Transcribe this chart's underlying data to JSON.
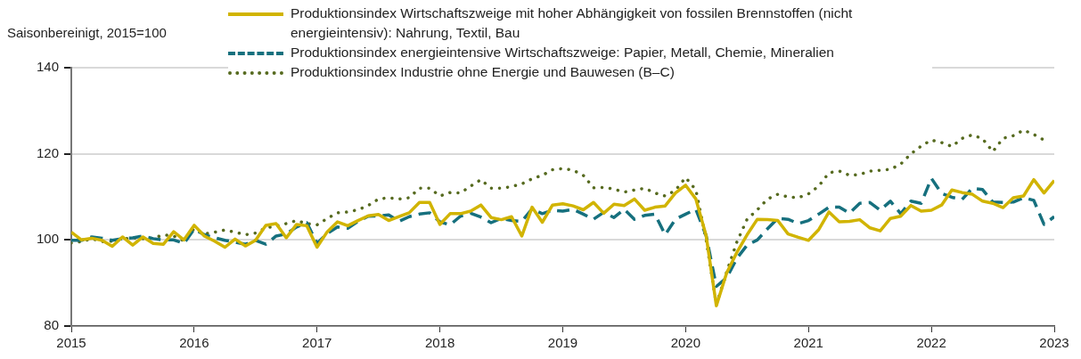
{
  "chart_data": {
    "type": "line",
    "ylabel": "Saisonbereinigt, 2015=100",
    "legend": "top",
    "grid": "y",
    "marker": "none",
    "xlim": [
      "2015-01",
      "2023-01"
    ],
    "xticks": [
      "2015",
      "2016",
      "2017",
      "2018",
      "2019",
      "2020",
      "2021",
      "2022",
      "2023"
    ],
    "ylim": [
      80,
      140
    ],
    "yticks": [
      80,
      100,
      120,
      140
    ],
    "x": [
      "2015-01",
      "2015-02",
      "2015-03",
      "2015-04",
      "2015-05",
      "2015-06",
      "2015-07",
      "2015-08",
      "2015-09",
      "2015-10",
      "2015-11",
      "2015-12",
      "2016-01",
      "2016-02",
      "2016-03",
      "2016-04",
      "2016-05",
      "2016-06",
      "2016-07",
      "2016-08",
      "2016-09",
      "2016-10",
      "2016-11",
      "2016-12",
      "2017-01",
      "2017-02",
      "2017-03",
      "2017-04",
      "2017-05",
      "2017-06",
      "2017-07",
      "2017-08",
      "2017-09",
      "2017-10",
      "2017-11",
      "2017-12",
      "2018-01",
      "2018-02",
      "2018-03",
      "2018-04",
      "2018-05",
      "2018-06",
      "2018-07",
      "2018-08",
      "2018-09",
      "2018-10",
      "2018-11",
      "2018-12",
      "2019-01",
      "2019-02",
      "2019-03",
      "2019-04",
      "2019-05",
      "2019-06",
      "2019-07",
      "2019-08",
      "2019-09",
      "2019-10",
      "2019-11",
      "2019-12",
      "2020-01",
      "2020-02",
      "2020-03",
      "2020-04",
      "2020-05",
      "2020-06",
      "2020-07",
      "2020-08",
      "2020-09",
      "2020-10",
      "2020-11",
      "2020-12",
      "2021-01",
      "2021-02",
      "2021-03",
      "2021-04",
      "2021-05",
      "2021-06",
      "2021-07",
      "2021-08",
      "2021-09",
      "2021-10",
      "2021-11",
      "2021-12",
      "2022-01",
      "2022-02",
      "2022-03",
      "2022-04",
      "2022-05",
      "2022-06",
      "2022-07",
      "2022-08",
      "2022-09",
      "2022-10",
      "2022-11",
      "2022-12",
      "2023-01"
    ],
    "series": [
      {
        "name": "Produktionsindex Wirtschaftszweige mit hoher Abhängigkeit von fossilen Brennstoffen (nicht energieintensiv): Nahrung, Textil, Bau",
        "color": "#d1b400",
        "line_style": "solid",
        "values": [
          101.8,
          100,
          100.4,
          99.9,
          98.5,
          100.7,
          98.8,
          100.7,
          99.2,
          99,
          101.9,
          100,
          103.4,
          100.9,
          99.7,
          98.3,
          100.2,
          98.6,
          99.9,
          103.4,
          103.8,
          100.5,
          103.6,
          103.3,
          98.3,
          101.9,
          104.2,
          103.3,
          104.5,
          105.6,
          105.9,
          104.5,
          105.4,
          106.3,
          108.7,
          108.7,
          103.6,
          106.1,
          106.1,
          106.7,
          108.1,
          105.2,
          104.7,
          105.4,
          100.9,
          107.6,
          104.1,
          108.1,
          108.4,
          107.9,
          107,
          108.7,
          106.2,
          108.3,
          108,
          109.5,
          106.9,
          107.6,
          107.9,
          110.9,
          112.7,
          109.5,
          101,
          84.7,
          92.3,
          97.1,
          101.2,
          104.8,
          104.7,
          104.5,
          101.4,
          100.6,
          99.9,
          102.4,
          106.5,
          104.2,
          104.3,
          104.7,
          102.8,
          102.1,
          105,
          105.5,
          108,
          106.7,
          106.9,
          108.1,
          111.6,
          111,
          110.6,
          109,
          108.5,
          107.5,
          109.8,
          110.2,
          114,
          110.9,
          113.8
        ]
      },
      {
        "name": "Produktionsindex energieintensive Wirtschaftszweige: Papier, Metall, Chemie, Mineralien",
        "color": "#16707e",
        "line_style": "dashed",
        "values": [
          99.9,
          99.9,
          100.7,
          100.4,
          99.9,
          100.3,
          100.5,
          100.9,
          100.3,
          100,
          100,
          99.2,
          102.5,
          101.2,
          100.5,
          99.9,
          99.5,
          99,
          99.9,
          99,
          100.9,
          101.4,
          103,
          104,
          99.2,
          101.5,
          103,
          102.7,
          104.3,
          105.5,
          105.6,
          105.8,
          104.3,
          105.4,
          106,
          106.3,
          104.2,
          103.5,
          105.5,
          106.2,
          105.3,
          104,
          105,
          104.5,
          104.3,
          107.2,
          106.1,
          106.9,
          106.7,
          107.1,
          106,
          104.8,
          106.4,
          105.2,
          107.1,
          104.8,
          105.7,
          106,
          101.2,
          104.8,
          106,
          107.1,
          101,
          89.2,
          91.2,
          95.7,
          98.8,
          100,
          102.6,
          105,
          104.8,
          103.8,
          104.5,
          106,
          107.6,
          107.6,
          106.2,
          108.5,
          108.7,
          106.9,
          109,
          106.1,
          109,
          108.5,
          114.3,
          110.8,
          109.9,
          109.4,
          112,
          111.7,
          108.8,
          108.7,
          108.8,
          109.8,
          109.2,
          103.6,
          105.4
        ]
      },
      {
        "name": "Produktionsindex Industrie ohne Energie und Bauwesen (B–C)",
        "color": "#566a1f",
        "line_style": "dotted",
        "values": [
          99.3,
          99.6,
          100.3,
          99.6,
          99.7,
          100.2,
          100.5,
          100.3,
          100.4,
          101.2,
          100.9,
          99.8,
          102.6,
          101.4,
          101.8,
          102.3,
          101.8,
          101.2,
          101.6,
          102.8,
          103.2,
          103.8,
          104.5,
          103.8,
          103.5,
          105,
          106.3,
          106.5,
          107,
          108,
          109.5,
          109.8,
          109.5,
          109.8,
          112,
          112,
          110.2,
          111,
          110.9,
          112.5,
          114,
          112,
          112,
          112.4,
          113,
          114.2,
          115,
          116.3,
          116.6,
          116.2,
          115,
          112.1,
          112.2,
          111.8,
          111.1,
          111.6,
          112,
          110.9,
          110.2,
          111.5,
          114.5,
          111.6,
          100,
          85,
          92.5,
          99.5,
          104.8,
          107,
          109.5,
          110.6,
          110,
          109.8,
          110.7,
          112.5,
          115.6,
          116,
          115,
          115.2,
          116,
          116.2,
          116.4,
          117.6,
          120,
          121.8,
          123.2,
          122.6,
          121.7,
          123.6,
          124.4,
          123.5,
          120.5,
          123.6,
          124.2,
          125.5,
          124.5,
          123.2,
          null
        ]
      }
    ]
  }
}
